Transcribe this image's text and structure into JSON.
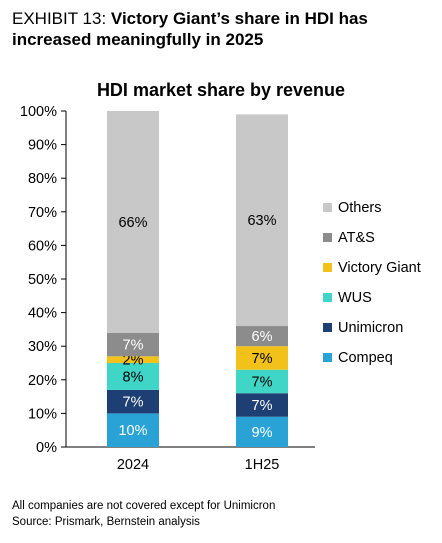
{
  "exhibit": {
    "label": "EXHIBIT 13: ",
    "title": "Victory Giant’s share in HDI has increased meaningfully in 2025"
  },
  "footnotes": {
    "note": "All companies are not covered except for Unimicron",
    "source": "Source: Prismark, Bernstein analysis"
  },
  "chart_data": {
    "type": "bar",
    "stacked": true,
    "title": "HDI market share by revenue",
    "categories": [
      "2024",
      "1H25"
    ],
    "ylim": [
      0,
      100
    ],
    "y_ticks": [
      "0%",
      "10%",
      "20%",
      "30%",
      "40%",
      "50%",
      "60%",
      "70%",
      "80%",
      "90%",
      "100%"
    ],
    "grid": false,
    "legend_position": "right",
    "series": [
      {
        "name": "Compeq",
        "color": "#29a3d6",
        "label_color": "#ffffff",
        "values": [
          10,
          9
        ],
        "labels": [
          "10%",
          "9%"
        ]
      },
      {
        "name": "Unimicron",
        "color": "#1d3f73",
        "label_color": "#ffffff",
        "values": [
          7,
          7
        ],
        "labels": [
          "7%",
          "7%"
        ]
      },
      {
        "name": "WUS",
        "color": "#3fd6c7",
        "label_color": "#000000",
        "values": [
          8,
          7
        ],
        "labels": [
          "8%",
          "7%"
        ]
      },
      {
        "name": "Victory Giant",
        "color": "#f2c21a",
        "label_color": "#000000",
        "values": [
          2,
          7
        ],
        "labels": [
          "2%",
          "7%"
        ]
      },
      {
        "name": "AT&S",
        "color": "#8c8c8c",
        "label_color": "#ffffff",
        "values": [
          7,
          6
        ],
        "labels": [
          "7%",
          "6%"
        ]
      },
      {
        "name": "Others",
        "color": "#c8c8c8",
        "label_color": "#000000",
        "values": [
          66,
          63
        ],
        "labels": [
          "66%",
          "63%"
        ]
      }
    ],
    "legend_order": [
      "Others",
      "AT&S",
      "Victory Giant",
      "WUS",
      "Unimicron",
      "Compeq"
    ]
  }
}
